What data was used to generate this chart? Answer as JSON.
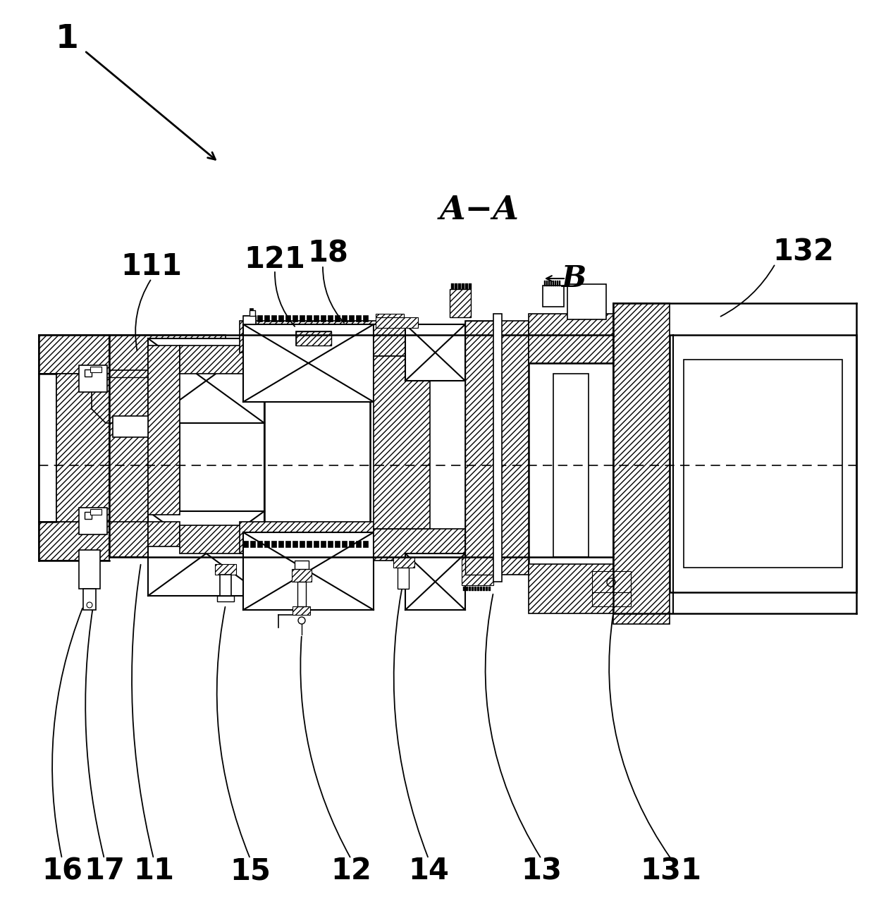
{
  "bg_color": "#ffffff",
  "line_color": "#000000",
  "label_1": "1",
  "label_AA": "A−A",
  "label_B": "B",
  "label_111": "111",
  "label_121": "121",
  "label_18": "18",
  "label_132": "132",
  "label_16": "16",
  "label_17": "17",
  "label_11": "11",
  "label_15": "15",
  "label_12": "12",
  "label_14": "14",
  "label_13": "13",
  "label_131": "131",
  "label_fontsize": 30
}
